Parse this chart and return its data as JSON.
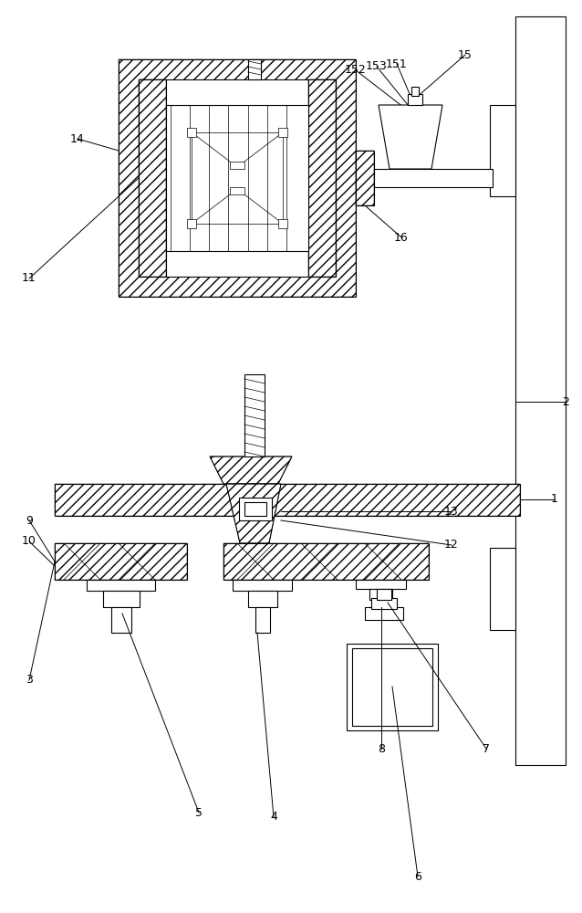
{
  "bg_color": "#ffffff",
  "line_color": "#000000",
  "lw": 0.8,
  "thin_lw": 0.5
}
